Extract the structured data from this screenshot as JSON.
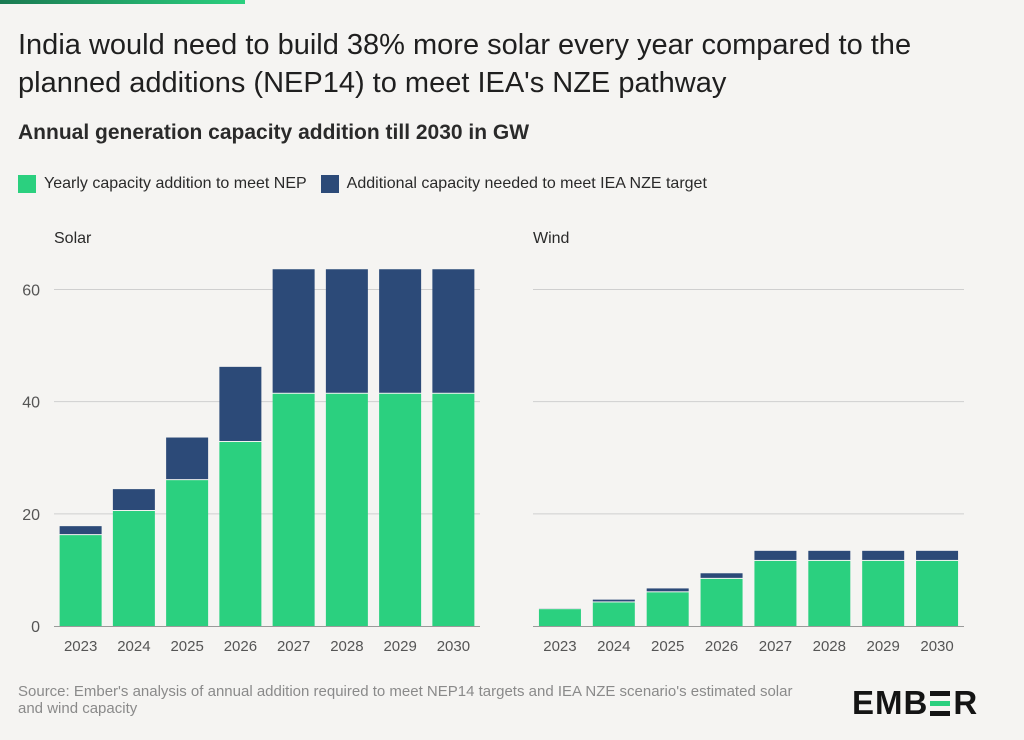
{
  "title": "India would need to build 38% more solar every year compared to the planned additions (NEP14) to meet IEA's NZE pathway",
  "subtitle": "Annual generation capacity addition till 2030 in GW",
  "legend": [
    {
      "label": "Yearly capacity addition to meet NEP",
      "color": "#2bd07f"
    },
    {
      "label": "Additional capacity needed to meet IEA NZE target",
      "color": "#2c4a78"
    }
  ],
  "colors": {
    "nep": "#2bd07f",
    "nze": "#2c4a78",
    "accent": "#1a7a52",
    "accent_light": "#2bd07f",
    "grid": "#cfcfcf"
  },
  "chart_data": [
    {
      "type": "bar",
      "stacked": true,
      "title": "Solar",
      "categories": [
        "2023",
        "2024",
        "2025",
        "2026",
        "2027",
        "2028",
        "2029",
        "2030"
      ],
      "series": [
        {
          "name": "Yearly capacity addition to meet NEP",
          "values": [
            16.2,
            20.5,
            26.0,
            32.8,
            41.4,
            41.4,
            41.4,
            41.4
          ]
        },
        {
          "name": "Additional capacity needed to meet IEA NZE target",
          "values": [
            1.6,
            3.9,
            7.6,
            13.4,
            22.2,
            22.2,
            22.2,
            22.2
          ]
        }
      ],
      "yticks": [
        0,
        20,
        40,
        60
      ],
      "ylim": [
        0,
        64
      ],
      "grid": true
    },
    {
      "type": "bar",
      "stacked": true,
      "title": "Wind",
      "categories": [
        "2023",
        "2024",
        "2025",
        "2026",
        "2027",
        "2028",
        "2029",
        "2030"
      ],
      "series": [
        {
          "name": "Yearly capacity addition to meet NEP",
          "values": [
            3.0,
            4.2,
            6.0,
            8.4,
            11.6,
            11.6,
            11.6,
            11.6
          ]
        },
        {
          "name": "Additional capacity needed to meet IEA NZE target",
          "values": [
            0.2,
            0.5,
            0.7,
            1.0,
            1.8,
            1.8,
            1.8,
            1.8
          ]
        }
      ],
      "yticks": [
        0,
        20,
        40,
        60
      ],
      "ylim": [
        0,
        64
      ],
      "grid": true
    }
  ],
  "source": "Source: Ember's analysis of annual addition required to meet NEP14 targets and IEA NZE scenario's estimated solar and wind capacity",
  "logo": {
    "part1": "EMB",
    "part2": "R"
  }
}
